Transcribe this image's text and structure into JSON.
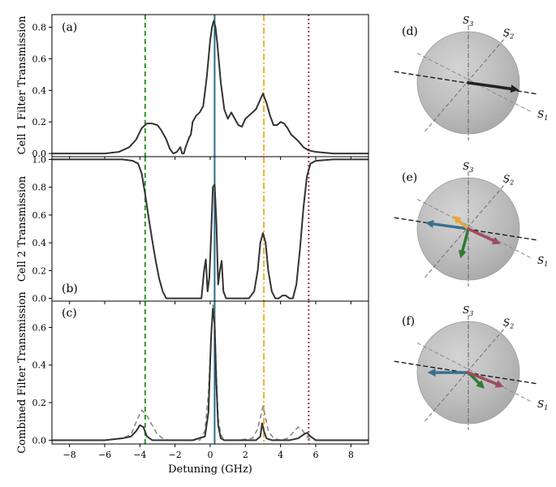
{
  "chart_data": [
    {
      "id": "a",
      "type": "line",
      "panel_label": "(a)",
      "ylabel": "Cell 1 Filter Transmission",
      "xlim": [
        -9,
        9
      ],
      "ylim": [
        -0.02,
        0.88
      ],
      "yticks": [
        0.0,
        0.2,
        0.4,
        0.6,
        0.8
      ],
      "ytick_labels": [
        "0.0",
        "0.2",
        "0.4",
        "0.6",
        "0.8"
      ],
      "series": [
        {
          "style": "solid",
          "color": "#333333",
          "x": [
            -9,
            -6,
            -5.2,
            -4.6,
            -4.2,
            -3.9,
            -3.6,
            -3.3,
            -3.0,
            -2.8,
            -2.5,
            -2.3,
            -2.1,
            -1.9,
            -1.7,
            -1.6,
            -1.5,
            -1.4,
            -1.3,
            -1.2,
            -1.1,
            -1.0,
            -0.8,
            -0.6,
            -0.4,
            -0.2,
            0.0,
            0.1,
            0.2,
            0.3,
            0.4,
            0.6,
            0.8,
            1.0,
            1.2,
            1.4,
            1.6,
            1.8,
            2.0,
            2.2,
            2.4,
            2.6,
            2.8,
            3.0,
            3.2,
            3.4,
            3.6,
            3.8,
            4.0,
            4.2,
            4.4,
            4.6,
            4.8,
            5.0,
            5.3,
            5.6,
            6.0,
            7.0,
            9
          ],
          "y": [
            0.0,
            0.0,
            0.01,
            0.04,
            0.09,
            0.16,
            0.19,
            0.19,
            0.18,
            0.15,
            0.09,
            0.03,
            0.0,
            0.01,
            0.04,
            0.0,
            0.0,
            0.04,
            0.07,
            0.1,
            0.12,
            0.2,
            0.24,
            0.26,
            0.3,
            0.48,
            0.72,
            0.8,
            0.84,
            0.8,
            0.7,
            0.45,
            0.28,
            0.22,
            0.26,
            0.22,
            0.18,
            0.17,
            0.22,
            0.24,
            0.26,
            0.28,
            0.33,
            0.38,
            0.32,
            0.24,
            0.18,
            0.18,
            0.2,
            0.19,
            0.16,
            0.12,
            0.1,
            0.08,
            0.04,
            0.02,
            0.01,
            0.0,
            0.0
          ]
        }
      ]
    },
    {
      "id": "b",
      "type": "line",
      "panel_label": "(b)",
      "ylabel": "Cell 2 Transmission",
      "xlim": [
        -9,
        9
      ],
      "ylim": [
        -0.02,
        1.02
      ],
      "yticks": [
        0.0,
        0.2,
        0.4,
        0.6,
        0.8,
        1.0
      ],
      "ytick_labels": [
        "0.0",
        "0.2",
        "0.4",
        "0.6",
        "0.8",
        "1.0"
      ],
      "series": [
        {
          "style": "solid",
          "color": "#333333",
          "x": [
            -9,
            -5,
            -4.4,
            -4.1,
            -3.9,
            -3.7,
            -3.5,
            -3.3,
            -3.1,
            -2.9,
            -2.7,
            -2.5,
            -2.2,
            -1.0,
            -0.5,
            -0.35,
            -0.25,
            -0.15,
            -0.05,
            0.05,
            0.15,
            0.25,
            0.35,
            0.45,
            0.55,
            0.65,
            0.75,
            0.9,
            1.2,
            2.2,
            2.5,
            2.7,
            2.85,
            3.0,
            3.15,
            3.3,
            3.5,
            3.7,
            3.9,
            4.1,
            4.3,
            4.5,
            4.7,
            4.9,
            5.1,
            5.3,
            5.5,
            5.7,
            6.0,
            7.0,
            9
          ],
          "y": [
            1.0,
            1.0,
            0.99,
            0.97,
            0.9,
            0.75,
            0.58,
            0.42,
            0.27,
            0.14,
            0.05,
            0.0,
            0.0,
            0.0,
            0.0,
            0.2,
            0.28,
            0.05,
            0.15,
            0.45,
            0.8,
            0.82,
            0.55,
            0.1,
            0.2,
            0.27,
            0.05,
            0.0,
            0.0,
            0.0,
            0.05,
            0.2,
            0.4,
            0.47,
            0.4,
            0.2,
            0.05,
            0.0,
            0.0,
            0.02,
            0.02,
            0.0,
            0.0,
            0.1,
            0.35,
            0.65,
            0.88,
            0.97,
            0.99,
            1.0,
            1.0
          ]
        }
      ]
    },
    {
      "id": "c",
      "type": "line",
      "panel_label": "(c)",
      "ylabel": "Combined Filter Transmission",
      "xlabel": "Detuning (GHz)",
      "xlim": [
        -9,
        9
      ],
      "ylim": [
        -0.02,
        0.74
      ],
      "xticks": [
        -8,
        -6,
        -4,
        -2,
        0,
        2,
        4,
        6,
        8
      ],
      "xtick_labels": [
        "−8",
        "−6",
        "−4",
        "−2",
        "0",
        "2",
        "4",
        "6",
        "8"
      ],
      "yticks": [
        0.0,
        0.2,
        0.4,
        0.6
      ],
      "ytick_labels": [
        "0.0",
        "0.2",
        "0.4",
        "0.6"
      ],
      "series": [
        {
          "style": "dashed",
          "color": "#888888",
          "x": [
            -9,
            -6,
            -5,
            -4.5,
            -4.2,
            -3.9,
            -3.6,
            -3.3,
            -3.0,
            -2.7,
            -2.4,
            -1.5,
            -0.6,
            -0.3,
            -0.1,
            0.05,
            0.15,
            0.25,
            0.35,
            0.45,
            0.6,
            0.8,
            1.5,
            2.4,
            2.7,
            2.9,
            3.0,
            3.1,
            3.3,
            3.6,
            4.0,
            4.4,
            4.7,
            5.0,
            5.2,
            5.4,
            5.6,
            6.0,
            7.0,
            9
          ],
          "y": [
            0.0,
            0.0,
            0.01,
            0.03,
            0.1,
            0.16,
            0.13,
            0.08,
            0.03,
            0.01,
            0.0,
            0.0,
            0.0,
            0.05,
            0.25,
            0.55,
            0.72,
            0.65,
            0.35,
            0.12,
            0.03,
            0.0,
            0.0,
            0.01,
            0.06,
            0.14,
            0.18,
            0.14,
            0.05,
            0.01,
            0.0,
            0.01,
            0.04,
            0.07,
            0.06,
            0.03,
            0.01,
            0.0,
            0.0,
            0.0
          ]
        },
        {
          "style": "solid",
          "color": "#333333",
          "x": [
            -9,
            -6,
            -5,
            -4.5,
            -4.2,
            -4.0,
            -3.8,
            -3.6,
            -3.3,
            -3.0,
            -2.5,
            -1.0,
            -0.3,
            -0.1,
            0.05,
            0.15,
            0.25,
            0.35,
            0.45,
            0.6,
            0.8,
            1.5,
            2.6,
            2.85,
            2.95,
            3.05,
            3.2,
            3.5,
            4.0,
            4.5,
            5.0,
            5.3,
            5.5,
            5.7,
            6.0,
            7.0,
            9
          ],
          "y": [
            0.0,
            0.0,
            0.01,
            0.02,
            0.05,
            0.08,
            0.07,
            0.02,
            0.0,
            0.0,
            0.0,
            0.0,
            0.02,
            0.15,
            0.55,
            0.7,
            0.62,
            0.3,
            0.08,
            0.01,
            0.0,
            0.0,
            0.0,
            0.02,
            0.09,
            0.05,
            0.01,
            0.0,
            0.0,
            0.0,
            0.01,
            0.03,
            0.04,
            0.02,
            0.0,
            0.0,
            0.0
          ]
        }
      ]
    },
    {
      "id": "vertical-markers",
      "type": "line",
      "markers": [
        {
          "x": -3.7,
          "color": "#2a9a2a",
          "style": "dashed"
        },
        {
          "x": 0.25,
          "color": "#2c6b86",
          "style": "solid"
        },
        {
          "x": 3.05,
          "color": "#f0b030",
          "style": "dashdot"
        },
        {
          "x": 5.6,
          "color": "#a0305a",
          "style": "dotted"
        }
      ]
    },
    {
      "id": "d",
      "type": "other",
      "panel_label": "(d)",
      "axis_labels": {
        "s1": "S",
        "s1_sub": "1",
        "s2": "S",
        "s2_sub": "2",
        "s3": "S",
        "s3_sub": "3"
      },
      "vectors": [
        {
          "color": "#222222",
          "angle_deg": -8,
          "length": 1.0
        }
      ]
    },
    {
      "id": "e",
      "type": "other",
      "panel_label": "(e)",
      "axis_labels": {
        "s1": "S",
        "s1_sub": "1",
        "s2": "S",
        "s2_sub": "2",
        "s3": "S",
        "s3_sub": "3"
      },
      "vectors": [
        {
          "color": "#3b6f8a",
          "angle_deg": 172,
          "length": 0.85
        },
        {
          "color": "#e3a93a",
          "angle_deg": 140,
          "length": 0.4
        },
        {
          "color": "#2f7a32",
          "angle_deg": -105,
          "length": 0.6
        },
        {
          "color": "#a24a62",
          "angle_deg": -25,
          "length": 0.7
        }
      ]
    },
    {
      "id": "f",
      "type": "other",
      "panel_label": "(f)",
      "axis_labels": {
        "s1": "S",
        "s1_sub": "1",
        "s2": "S",
        "s2_sub": "2",
        "s3": "S",
        "s3_sub": "3"
      },
      "vectors": [
        {
          "color": "#3b6f8a",
          "angle_deg": 180,
          "length": 0.8
        },
        {
          "color": "#2f7a32",
          "angle_deg": -45,
          "length": 0.45
        },
        {
          "color": "#a24a62",
          "angle_deg": -22,
          "length": 0.75
        }
      ]
    }
  ]
}
